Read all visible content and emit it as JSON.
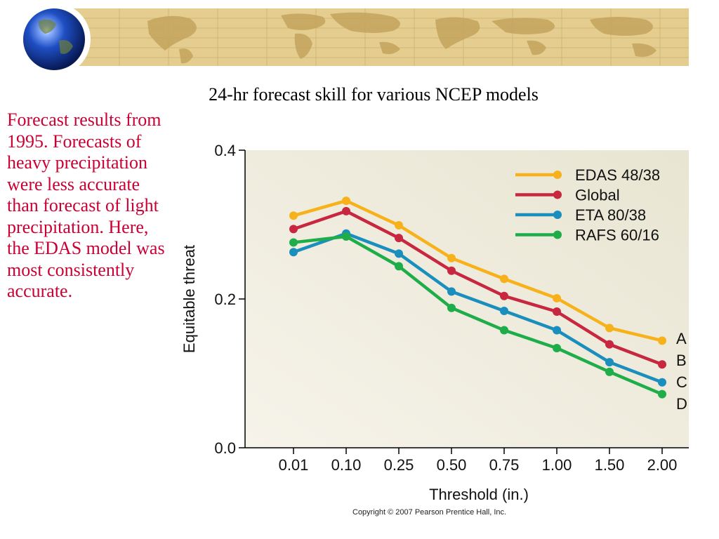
{
  "slide": {
    "title": "24-hr forecast skill for various NCEP models",
    "side_text": "Forecast results from 1995. Forecasts of heavy precipitation were less accurate than forecast of light precipitation. Here, the EDAS model was most consistently accurate.",
    "copyright": "Copyright © 2007 Pearson Prentice Hall, Inc."
  },
  "chart_data": {
    "type": "line",
    "title": "24-hr forecast skill for various NCEP models",
    "xlabel": "Threshold (in.)",
    "ylabel": "Equitable threat",
    "categories": [
      "0.01",
      "0.10",
      "0.25",
      "0.50",
      "0.75",
      "1.00",
      "1.50",
      "2.00"
    ],
    "ylim": [
      0,
      0.4
    ],
    "yticks": [
      "0.0",
      "0.2",
      "0.4"
    ],
    "grid": false,
    "legend": "top-right",
    "series": [
      {
        "name": "EDAS 48/38",
        "end_label": "A",
        "color": "#f7b21b",
        "values": [
          0.312,
          0.332,
          0.299,
          0.255,
          0.227,
          0.201,
          0.161,
          0.144
        ]
      },
      {
        "name": "Global",
        "end_label": "B",
        "color": "#c8283f",
        "values": [
          0.294,
          0.318,
          0.282,
          0.238,
          0.204,
          0.183,
          0.139,
          0.112
        ]
      },
      {
        "name": "ETA 80/38",
        "end_label": "C",
        "color": "#1a8fbe",
        "values": [
          0.263,
          0.288,
          0.261,
          0.21,
          0.184,
          0.158,
          0.115,
          0.088
        ]
      },
      {
        "name": "RAFS 60/16",
        "end_label": "D",
        "color": "#1fad4a",
        "values": [
          0.276,
          0.284,
          0.244,
          0.188,
          0.158,
          0.134,
          0.102,
          0.072
        ]
      }
    ]
  }
}
